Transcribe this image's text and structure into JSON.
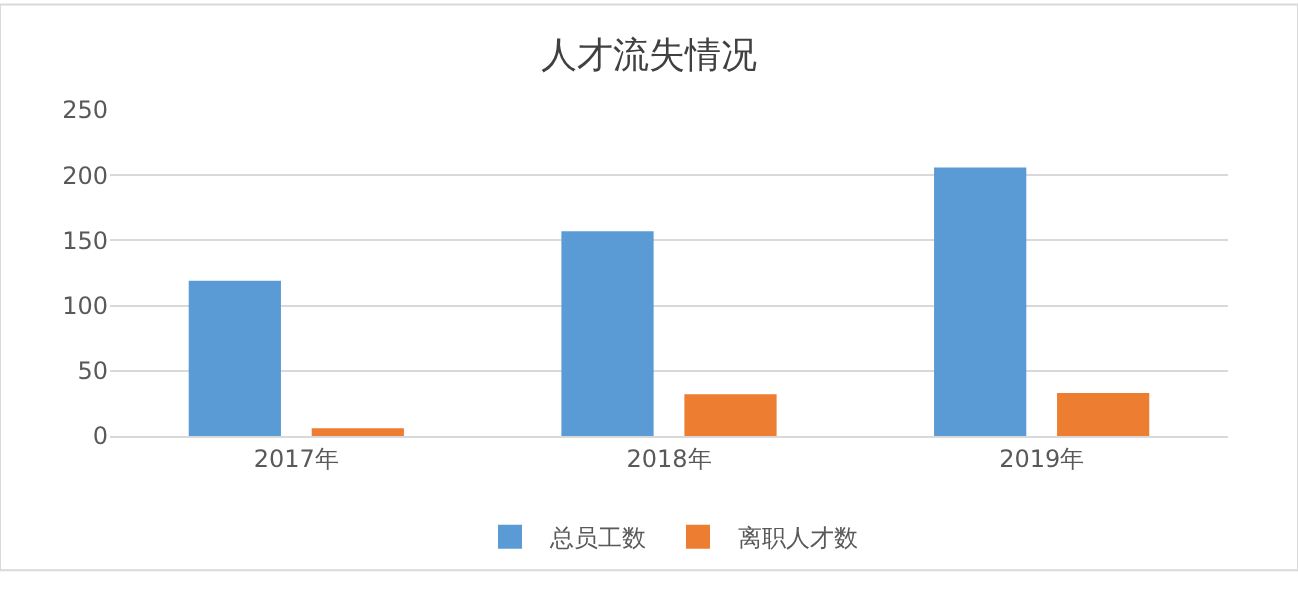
{
  "chart_data": {
    "type": "bar",
    "title": "人才流失情况",
    "categories": [
      "2017年",
      "2018年",
      "2019年"
    ],
    "series": [
      {
        "name": "总员工数",
        "color": "#5b9bd5",
        "values": [
          119,
          157,
          206
        ]
      },
      {
        "name": "离职人才数",
        "color": "#ed7d31",
        "values": [
          6,
          32,
          33
        ]
      }
    ],
    "ylim": [
      0,
      250
    ],
    "yticks": [
      0,
      50,
      100,
      150,
      200,
      250
    ],
    "grid": "y",
    "legend": "bottom"
  }
}
